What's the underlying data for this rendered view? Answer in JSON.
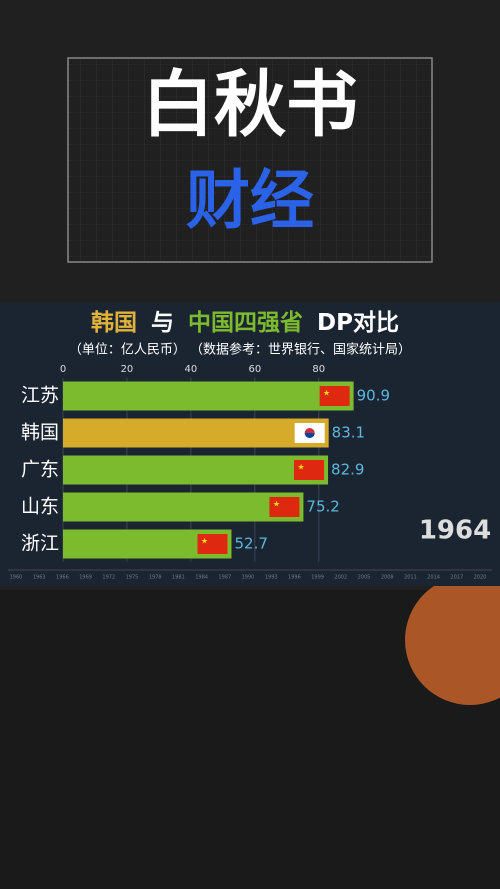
{
  "header": {
    "line1": "白秋书",
    "line2": "财经"
  },
  "chart_data": {
    "type": "barh",
    "title_parts": [
      "韩国",
      "与",
      "中国四强省",
      "DP对比"
    ],
    "subtitle": "（单位：亿人民币）  （数据参考：世界银行、国家统计局）",
    "categories": [
      "江苏",
      "韩国",
      "广东",
      "山东",
      "浙江"
    ],
    "values": [
      90.9,
      83.1,
      82.9,
      75.2,
      52.7
    ],
    "colors": [
      "#7dbb2e",
      "#d6ab2a",
      "#7dbb2e",
      "#7dbb2e",
      "#7dbb2e"
    ],
    "flags": [
      "cn",
      "kr",
      "cn",
      "cn",
      "cn"
    ],
    "xlim": [
      0,
      137
    ],
    "xticks": [
      0,
      20,
      40,
      60,
      80
    ],
    "year": "1964",
    "timeline": [
      "1960",
      "1963",
      "1966",
      "1969",
      "1972",
      "1975",
      "1978",
      "1981",
      "1984",
      "1987",
      "1990",
      "1993",
      "1996",
      "1999",
      "2002",
      "2005",
      "2008",
      "2011",
      "2014",
      "2017",
      "2020"
    ]
  }
}
